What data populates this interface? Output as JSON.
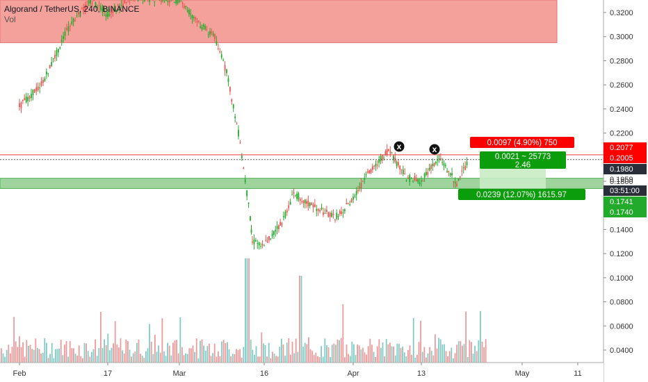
{
  "header": {
    "symbol_line": "Algorand / TetherUS, 240, BINANCE",
    "volume_label": "Vol"
  },
  "colors": {
    "up": "#26a69a",
    "down": "#ef5350",
    "up_bright": "#22ab2b",
    "resistance_zone": "#f4a09b",
    "support_zone": "#9fd49f",
    "target_zone": "#c9ecc4",
    "red_line": "#e53935",
    "label_red": "#ff0000",
    "label_green": "#0c9d0c",
    "axis_bg": "#ffffff",
    "countdown_bg": "#2a2e39"
  },
  "chart_data": {
    "type": "candlestick",
    "title": "Algorand / TetherUS, 240, BINANCE",
    "y_axis": {
      "ticks": [
        "0.3200",
        "0.3000",
        "0.2800",
        "0.2600",
        "0.2400",
        "0.2200",
        "0.2000",
        "0.1800",
        "0.1600",
        "0.1400",
        "0.1200",
        "0.1000",
        "0.0800",
        "0.0600",
        "0.0400"
      ],
      "range": [
        0.03,
        0.33
      ]
    },
    "x_axis": {
      "ticks": [
        "Feb",
        "17",
        "Mar",
        "16",
        "Apr",
        "13",
        "May",
        "11"
      ]
    },
    "price_path": [
      [
        "Feb",
        0.242
      ],
      [
        "Feb+4",
        0.262
      ],
      [
        "Feb+8",
        0.305
      ],
      [
        "Feb+12",
        0.33
      ],
      [
        "17",
        0.318
      ],
      [
        "17+4",
        0.333
      ],
      [
        "Mar",
        0.33
      ],
      [
        "Mar+3",
        0.312
      ],
      [
        "Mar+6",
        0.3
      ],
      [
        "Mar+8",
        0.27
      ],
      [
        "Mar+10",
        0.22
      ],
      [
        "Mar+12",
        0.15
      ],
      [
        "16-2",
        0.13
      ],
      [
        "16",
        0.128
      ],
      [
        "16+3",
        0.145
      ],
      [
        "16+5",
        0.17
      ],
      [
        "16+8",
        0.16
      ],
      [
        "16+12",
        0.15
      ],
      [
        "Apr-2",
        0.155
      ],
      [
        "Apr",
        0.165
      ],
      [
        "Apr+3",
        0.19
      ],
      [
        "Apr+6",
        0.205
      ],
      [
        "Apr+9",
        0.183
      ],
      [
        "13",
        0.18
      ],
      [
        "13+3",
        0.2
      ],
      [
        "13+6",
        0.178
      ],
      [
        "13+8",
        0.197
      ]
    ],
    "price_labels": [
      {
        "text": "0.2077",
        "kind": "red"
      },
      {
        "text": "0.2005",
        "kind": "red"
      },
      {
        "text": "0.1980",
        "kind": "dark"
      },
      {
        "text": "0.1959",
        "kind": "plain"
      },
      {
        "text": "03:51:00",
        "kind": "dark"
      },
      {
        "text": "0.1741",
        "kind": "green"
      },
      {
        "text": "0.1740",
        "kind": "green"
      }
    ],
    "zones": [
      {
        "name": "resistance",
        "from": 0.295,
        "to": 0.33
      },
      {
        "name": "support",
        "from": 0.174,
        "to": 0.1825
      }
    ],
    "horizontal_lines": [
      {
        "price": 0.202,
        "style": "solid"
      },
      {
        "price": 0.198,
        "style": "dotted"
      }
    ],
    "markers": [
      {
        "label": "x",
        "at": "Apr+6"
      },
      {
        "label": "x",
        "at": "13+4"
      }
    ],
    "position_tool": {
      "target_text": "0.0097 (4.90%) 750",
      "ratio_text": "0.0021 ~ 25773",
      "ratio_value": "2.46",
      "stop_text": "0.0239 (12.07%) 1615.97"
    }
  }
}
